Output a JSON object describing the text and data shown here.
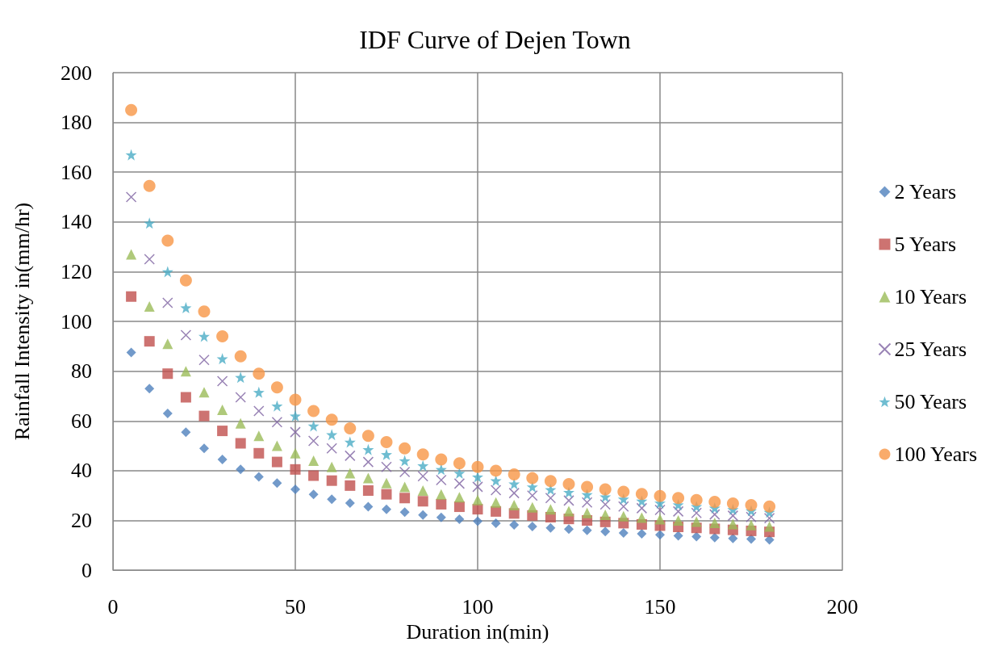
{
  "chart_data": {
    "type": "scatter",
    "title": "IDF Curve of Dejen Town",
    "xlabel": "Duration in(min)",
    "ylabel": "Rainfall Intensity in(mm/hr)",
    "x": [
      5,
      10,
      15,
      20,
      25,
      30,
      35,
      40,
      45,
      50,
      55,
      60,
      65,
      70,
      75,
      80,
      85,
      90,
      95,
      100,
      105,
      110,
      115,
      120,
      125,
      130,
      135,
      140,
      145,
      150,
      155,
      160,
      165,
      170,
      175,
      180
    ],
    "series": [
      {
        "name": "2 Years",
        "color": "#4f81bd",
        "marker": "diamond",
        "values": [
          87.5,
          73,
          63,
          55.5,
          49,
          44.5,
          40.5,
          37.5,
          35,
          32.5,
          30.5,
          28.5,
          27,
          25.5,
          24.5,
          23.3,
          22.2,
          21.2,
          20.5,
          19.7,
          18.9,
          18.2,
          17.6,
          17,
          16.5,
          16,
          15.5,
          15,
          14.6,
          14.2,
          13.8,
          13.5,
          13.1,
          12.8,
          12.5,
          12.2
        ]
      },
      {
        "name": "5 Years",
        "color": "#c0504d",
        "marker": "square",
        "values": [
          110,
          92,
          79,
          69.5,
          62,
          56,
          51,
          47,
          43.5,
          40.5,
          38,
          36,
          34,
          32,
          30.5,
          29,
          27.7,
          26.5,
          25.5,
          24.5,
          23.6,
          22.8,
          22,
          21.3,
          20.6,
          20,
          19.4,
          18.9,
          18.4,
          17.9,
          17.4,
          17,
          16.6,
          16.2,
          15.8,
          15.4
        ]
      },
      {
        "name": "10 Years",
        "color": "#9bbb59",
        "marker": "triangle",
        "values": [
          127,
          106,
          91,
          80,
          71.5,
          64.5,
          59,
          54,
          50,
          47,
          44,
          41.5,
          39,
          37,
          35,
          33.5,
          32,
          30.5,
          29.3,
          28.2,
          27.2,
          26.2,
          25.3,
          24.5,
          23.7,
          23,
          22.3,
          21.7,
          21.1,
          20.5,
          20,
          19.5,
          19,
          18.5,
          18.1,
          17.6
        ]
      },
      {
        "name": "25 Years",
        "color": "#8064a2",
        "marker": "cross",
        "values": [
          150,
          125,
          107.5,
          94.5,
          84.5,
          76,
          69.5,
          64,
          59.5,
          55.5,
          52,
          49,
          46,
          43.5,
          41.5,
          39.5,
          37.8,
          36.2,
          34.8,
          33.5,
          32.2,
          31,
          30,
          29,
          28,
          27.2,
          26.4,
          25.6,
          24.9,
          24.2,
          23.6,
          23,
          22.4,
          21.9,
          21.4,
          20.9
        ]
      },
      {
        "name": "50 Years",
        "color": "#4bacc6",
        "marker": "star",
        "values": [
          167,
          139.5,
          120,
          105.5,
          94,
          85,
          77.5,
          71.5,
          66,
          62,
          58,
          54.5,
          51.5,
          48.5,
          46.5,
          44,
          42,
          40.5,
          39,
          37.5,
          36,
          34.7,
          33.5,
          32.4,
          31.3,
          30.4,
          29.5,
          28.6,
          27.8,
          27,
          26.3,
          25.6,
          25,
          24.4,
          23.9,
          23.3
        ]
      },
      {
        "name": "100 Years",
        "color": "#f79646",
        "marker": "circle",
        "values": [
          185,
          154.5,
          132.5,
          116.5,
          104,
          94,
          86,
          79,
          73.5,
          68.5,
          64,
          60.5,
          57,
          54,
          51.5,
          49,
          46.5,
          44.5,
          43,
          41.5,
          40,
          38.5,
          37,
          35.8,
          34.6,
          33.5,
          32.5,
          31.5,
          30.6,
          29.8,
          29,
          28.2,
          27.5,
          26.8,
          26.2,
          25.6
        ]
      }
    ],
    "xlim": [
      0,
      200
    ],
    "xticks": [
      0,
      50,
      100,
      150,
      200
    ],
    "ylim": [
      0,
      200
    ],
    "yticks": [
      0,
      20,
      40,
      60,
      80,
      100,
      120,
      140,
      160,
      180,
      200
    ],
    "grid": true,
    "legend": "right"
  }
}
